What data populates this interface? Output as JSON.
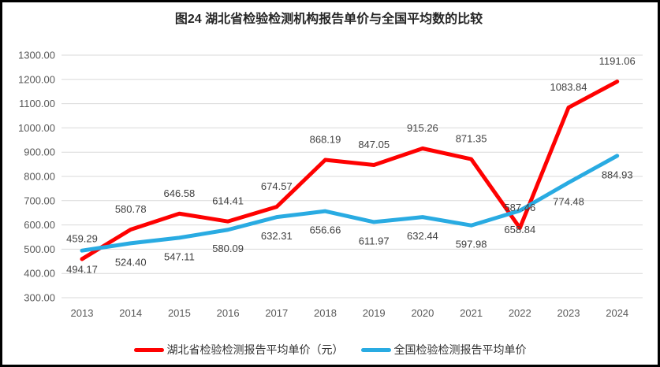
{
  "chart_data": {
    "type": "line",
    "title": "图24 湖北省检验检测机构报告单价与全国平均数的比较",
    "categories": [
      "2013",
      "2014",
      "2015",
      "2016",
      "2017",
      "2018",
      "2019",
      "2020",
      "2021",
      "2022",
      "2023",
      "2024"
    ],
    "series": [
      {
        "name": "湖北省检验检测报告平均单价（元）",
        "color": "#FE0101",
        "values": [
          459.29,
          580.78,
          646.58,
          614.41,
          674.57,
          868.19,
          847.05,
          915.26,
          871.35,
          587.46,
          1083.84,
          1191.06
        ],
        "label_position": "above"
      },
      {
        "name": "全国检验检测报告平均单价",
        "color": "#29ABE2",
        "values": [
          494.17,
          524.4,
          547.11,
          580.09,
          632.31,
          656.66,
          611.97,
          632.44,
          597.98,
          658.84,
          774.48,
          884.93
        ],
        "label_position": "below"
      }
    ],
    "y_axis": {
      "min": 300,
      "max": 1300,
      "step": 100,
      "tick_format": "two_decimals"
    },
    "grid": true,
    "legend_position": "bottom",
    "colors": {
      "gridline": "#D9D9D9",
      "axis_text": "#595959",
      "data_label": "#404040",
      "title_text": "#262626",
      "frame_border": "#000000",
      "background": "#FFFFFF"
    }
  }
}
